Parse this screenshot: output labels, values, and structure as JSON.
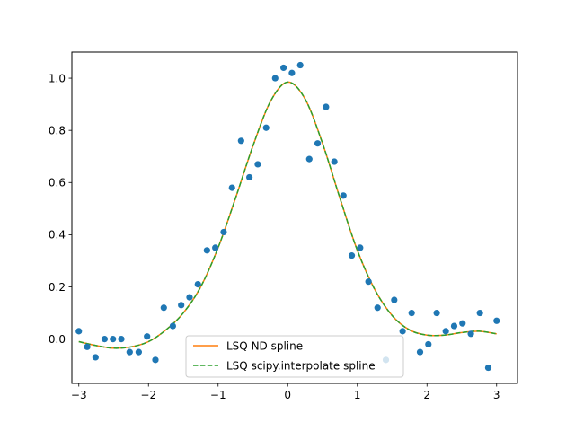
{
  "colors": {
    "points": "#1f77b4",
    "nd_spline": "#ff7f0e",
    "scipy_spline": "#2ca02c",
    "axis": "#000000",
    "legend_border": "#cccccc"
  },
  "chart_data": {
    "type": "scatter",
    "title": "",
    "xlabel": "",
    "ylabel": "",
    "xlim": [
      -3.1,
      3.3
    ],
    "ylim": [
      -0.17,
      1.1
    ],
    "grid": false,
    "legend_placement": "lower-center",
    "x_ticks": [
      -3,
      -2,
      -1,
      0,
      1,
      2,
      3
    ],
    "x_tick_labels": [
      "−3",
      "−2",
      "−1",
      "0",
      "1",
      "2",
      "3"
    ],
    "y_ticks": [
      0.0,
      0.2,
      0.4,
      0.6,
      0.8,
      1.0
    ],
    "y_tick_labels": [
      "0.0",
      "0.2",
      "0.4",
      "0.6",
      "0.8",
      "1.0"
    ],
    "points": {
      "x": [
        -3.0,
        -2.88,
        -2.76,
        -2.63,
        -2.51,
        -2.39,
        -2.27,
        -2.14,
        -2.02,
        -1.9,
        -1.78,
        -1.65,
        -1.53,
        -1.41,
        -1.29,
        -1.16,
        -1.04,
        -0.92,
        -0.8,
        -0.67,
        -0.55,
        -0.43,
        -0.31,
        -0.18,
        -0.06,
        0.06,
        0.18,
        0.31,
        0.43,
        0.55,
        0.67,
        0.8,
        0.92,
        1.04,
        1.16,
        1.29,
        1.41,
        1.53,
        1.65,
        1.78,
        1.9,
        2.02,
        2.14,
        2.27,
        2.39,
        2.51,
        2.63,
        2.76,
        2.88,
        3.0
      ],
      "y": [
        0.03,
        -0.03,
        -0.07,
        0.0,
        0.0,
        0.0,
        -0.05,
        -0.05,
        0.01,
        -0.08,
        0.12,
        0.05,
        0.13,
        0.16,
        0.21,
        0.34,
        0.35,
        0.41,
        0.58,
        0.76,
        0.62,
        0.67,
        0.81,
        1.0,
        1.04,
        1.02,
        1.05,
        0.69,
        0.75,
        0.89,
        0.68,
        0.55,
        0.32,
        0.35,
        0.22,
        0.12,
        -0.08,
        0.15,
        0.03,
        0.1,
        -0.05,
        -0.02,
        0.1,
        0.03,
        0.05,
        0.06,
        0.02,
        0.1,
        -0.11,
        0.07
      ]
    },
    "series": [
      {
        "name": "LSQ ND spline",
        "style": "solid",
        "x": [
          -3.0,
          -2.75,
          -2.5,
          -2.25,
          -2.0,
          -1.75,
          -1.5,
          -1.25,
          -1.0,
          -0.75,
          -0.5,
          -0.25,
          0.0,
          0.25,
          0.5,
          0.75,
          1.0,
          1.25,
          1.5,
          1.75,
          2.0,
          2.25,
          2.5,
          2.75,
          3.0
        ],
        "y": [
          -0.01,
          -0.025,
          -0.035,
          -0.03,
          -0.01,
          0.035,
          0.1,
          0.2,
          0.35,
          0.54,
          0.74,
          0.91,
          0.985,
          0.92,
          0.75,
          0.54,
          0.34,
          0.19,
          0.09,
          0.035,
          0.015,
          0.015,
          0.025,
          0.03,
          0.02
        ]
      },
      {
        "name": "LSQ scipy.interpolate spline",
        "style": "dashed",
        "x": [
          -3.0,
          -2.75,
          -2.5,
          -2.25,
          -2.0,
          -1.75,
          -1.5,
          -1.25,
          -1.0,
          -0.75,
          -0.5,
          -0.25,
          0.0,
          0.25,
          0.5,
          0.75,
          1.0,
          1.25,
          1.5,
          1.75,
          2.0,
          2.25,
          2.5,
          2.75,
          3.0
        ],
        "y": [
          -0.01,
          -0.025,
          -0.035,
          -0.03,
          -0.01,
          0.035,
          0.1,
          0.2,
          0.35,
          0.54,
          0.74,
          0.91,
          0.985,
          0.92,
          0.75,
          0.54,
          0.34,
          0.19,
          0.09,
          0.035,
          0.015,
          0.015,
          0.025,
          0.03,
          0.02
        ]
      }
    ]
  }
}
